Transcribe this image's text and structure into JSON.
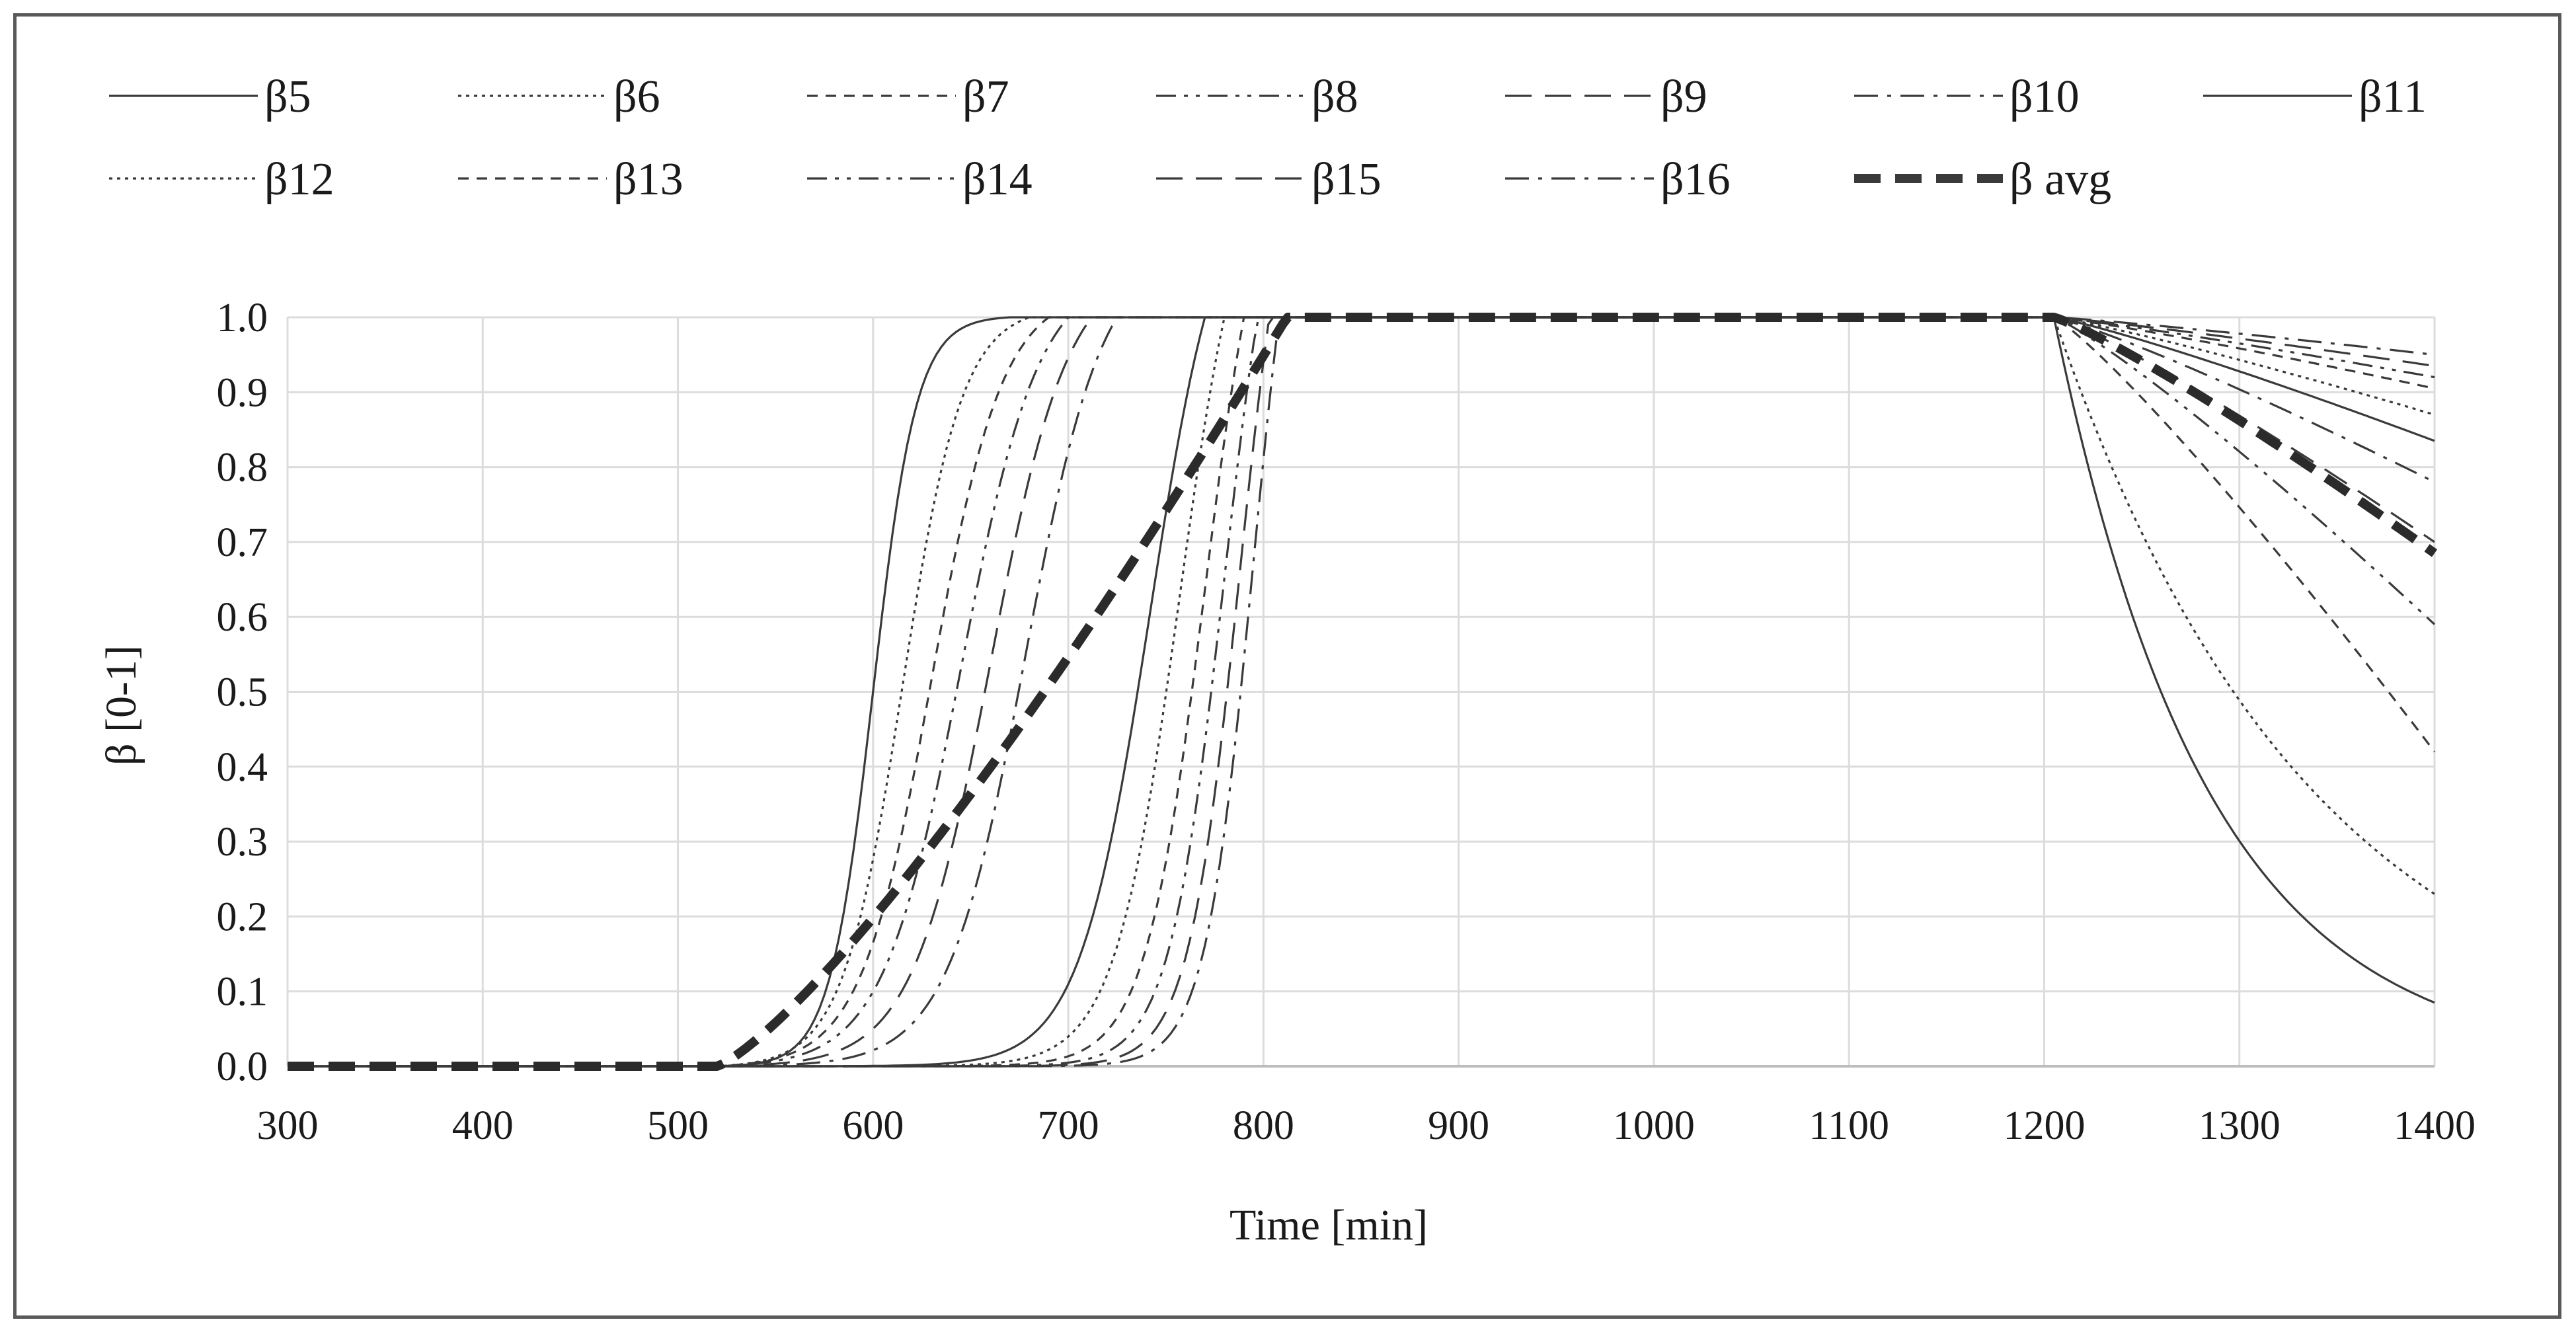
{
  "chart_data": {
    "type": "line",
    "title": "",
    "xlabel": "Time [min]",
    "ylabel": "β [0-1]",
    "xlim": [
      300,
      1400
    ],
    "ylim": [
      0,
      1.0
    ],
    "x_ticks": [
      300,
      400,
      500,
      600,
      700,
      800,
      900,
      1000,
      1100,
      1200,
      1300,
      1400
    ],
    "y_ticks": [
      "0.0",
      "0.1",
      "0.2",
      "0.3",
      "0.4",
      "0.5",
      "0.6",
      "0.7",
      "0.8",
      "0.9",
      "1.0"
    ],
    "grid": true,
    "legend_position": "top",
    "series": [
      {
        "name": "β5",
        "dash": "solid",
        "rise": {
          "k": 0.09,
          "end": 670,
          "tc": 600
        },
        "end_value": 0.085
      },
      {
        "name": "β6",
        "dash": "dotted",
        "rise": {
          "k": 0.065,
          "end": 680,
          "tc": 615
        },
        "end_value": 0.23
      },
      {
        "name": "β7",
        "dash": "short-dash",
        "rise": {
          "k": 0.055,
          "end": 690,
          "tc": 630
        },
        "end_value": 0.42
      },
      {
        "name": "β8",
        "dash": "dash-dot-dot",
        "rise": {
          "k": 0.05,
          "end": 700,
          "tc": 645
        },
        "end_value": 0.59
      },
      {
        "name": "β9",
        "dash": "long-dash",
        "rise": {
          "k": 0.05,
          "end": 712,
          "tc": 660
        },
        "end_value": 0.7
      },
      {
        "name": "β10",
        "dash": "dash-dot",
        "rise": {
          "k": 0.05,
          "end": 725,
          "tc": 678
        },
        "end_value": 0.78
      },
      {
        "name": "β11",
        "dash": "solid",
        "rise": {
          "k": 0.055,
          "end": 770,
          "tc": 742
        },
        "end_value": 0.835
      },
      {
        "name": "β12",
        "dash": "dotted",
        "rise": {
          "k": 0.06,
          "end": 780,
          "tc": 757
        },
        "end_value": 0.87
      },
      {
        "name": "β13",
        "dash": "short-dash",
        "rise": {
          "k": 0.065,
          "end": 790,
          "tc": 770
        },
        "end_value": 0.905
      },
      {
        "name": "β14",
        "dash": "dash-dot-dot",
        "rise": {
          "k": 0.07,
          "end": 797,
          "tc": 780
        },
        "end_value": 0.92
      },
      {
        "name": "β15",
        "dash": "long-dash",
        "rise": {
          "k": 0.075,
          "end": 803,
          "tc": 788
        },
        "end_value": 0.935
      },
      {
        "name": "β16",
        "dash": "dash-dot",
        "rise": {
          "k": 0.08,
          "end": 808,
          "tc": 795
        },
        "end_value": 0.95
      },
      {
        "name": "β avg",
        "dash": "heavy-dash",
        "rise": {
          "k": 0,
          "end": 812,
          "tc": 0
        },
        "end_value": 0.685
      }
    ]
  }
}
